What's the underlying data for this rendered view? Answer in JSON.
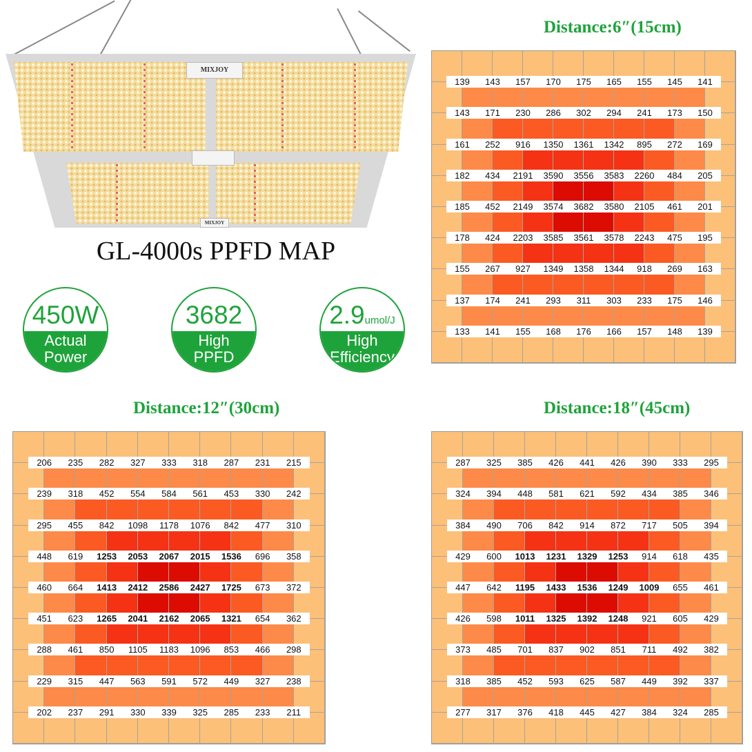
{
  "product": {
    "brand": "MIXJOY",
    "title": "GL-4000s PPFD MAP"
  },
  "badges": [
    {
      "value": "450W",
      "unit": "",
      "label_line1": "Actual",
      "label_line2": "Power"
    },
    {
      "value": "3682",
      "unit": "",
      "label_line1": "High",
      "label_line2": "PPFD"
    },
    {
      "value": "2.9",
      "unit": "umol/J",
      "label_line1": "High",
      "label_line2": "Efficiency"
    }
  ],
  "colors": {
    "accent_green": "#1ea33a",
    "ring_0": "#fcc079",
    "ring_1": "#fd8a48",
    "ring_2": "#fb5a22",
    "ring_3": "#f53214",
    "ring_4": "#dc0c02"
  },
  "maps": [
    {
      "title": "Distance:6″(15cm)",
      "values": [
        [
          139,
          143,
          157,
          170,
          175,
          165,
          155,
          145,
          141
        ],
        [
          143,
          171,
          230,
          286,
          302,
          294,
          241,
          173,
          150
        ],
        [
          161,
          252,
          916,
          1350,
          1361,
          1342,
          895,
          272,
          169
        ],
        [
          182,
          434,
          2191,
          3590,
          3556,
          3583,
          2260,
          484,
          205
        ],
        [
          185,
          452,
          2149,
          3574,
          3682,
          3580,
          2105,
          461,
          201
        ],
        [
          178,
          424,
          2203,
          3585,
          3561,
          3578,
          2243,
          475,
          195
        ],
        [
          155,
          267,
          927,
          1349,
          1358,
          1344,
          918,
          269,
          163
        ],
        [
          137,
          174,
          241,
          293,
          311,
          303,
          233,
          175,
          146
        ],
        [
          133,
          141,
          155,
          168,
          176,
          166,
          157,
          148,
          139
        ]
      ]
    },
    {
      "title": "Distance:12″(30cm)",
      "values": [
        [
          206,
          235,
          282,
          327,
          333,
          318,
          287,
          231,
          215
        ],
        [
          239,
          318,
          452,
          554,
          584,
          561,
          453,
          330,
          242
        ],
        [
          295,
          455,
          842,
          1098,
          1178,
          1076,
          842,
          477,
          310
        ],
        [
          448,
          619,
          1253,
          2053,
          2067,
          2015,
          1536,
          696,
          358
        ],
        [
          460,
          664,
          1413,
          2412,
          2586,
          2427,
          1725,
          673,
          372
        ],
        [
          451,
          623,
          1265,
          2041,
          2162,
          2065,
          1321,
          654,
          362
        ],
        [
          288,
          461,
          850,
          1105,
          1183,
          1096,
          853,
          466,
          298
        ],
        [
          229,
          315,
          447,
          563,
          591,
          572,
          449,
          327,
          238
        ],
        [
          202,
          237,
          291,
          330,
          339,
          325,
          285,
          233,
          211
        ]
      ]
    },
    {
      "title": "Distance:18″(45cm)",
      "values": [
        [
          287,
          325,
          385,
          426,
          441,
          426,
          390,
          333,
          295
        ],
        [
          324,
          394,
          448,
          581,
          621,
          592,
          434,
          385,
          346
        ],
        [
          384,
          490,
          706,
          842,
          914,
          872,
          717,
          505,
          394
        ],
        [
          429,
          600,
          1013,
          1231,
          1329,
          1253,
          914,
          618,
          435
        ],
        [
          447,
          642,
          1195,
          1433,
          1536,
          1249,
          1009,
          655,
          461
        ],
        [
          426,
          598,
          1011,
          1325,
          1392,
          1248,
          921,
          605,
          429
        ],
        [
          373,
          485,
          701,
          837,
          902,
          851,
          711,
          492,
          382
        ],
        [
          318,
          385,
          452,
          593,
          625,
          587,
          449,
          392,
          337
        ],
        [
          277,
          317,
          376,
          418,
          445,
          427,
          384,
          324,
          285
        ]
      ]
    }
  ]
}
